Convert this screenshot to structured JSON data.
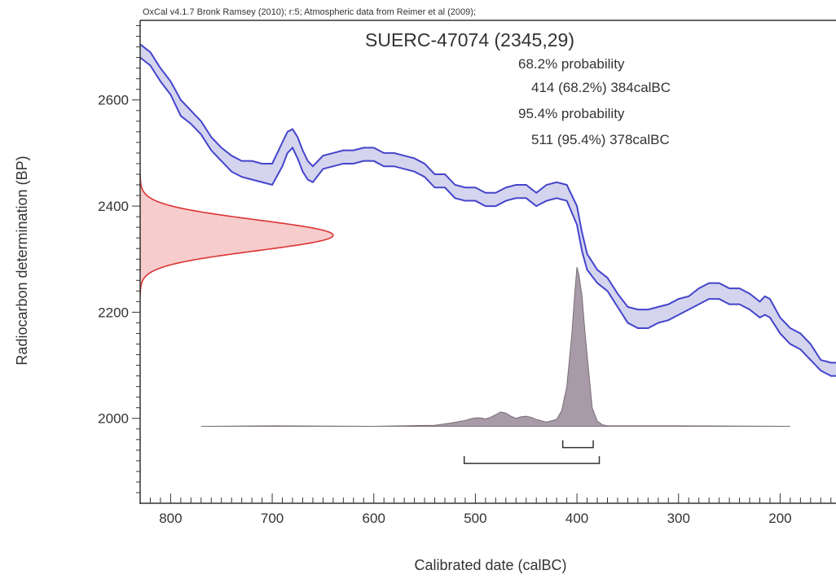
{
  "chart_data": {
    "type": "area",
    "header": "OxCal v4.1.7 Bronk Ramsey (2010); r:5; Atmospheric data from Reimer et al (2009);",
    "title": "SUERC-47074 (2345,29)",
    "summary": [
      "68.2% probability",
      "414 (68.2%) 384calBC",
      "95.4% probability",
      "511 (95.4%) 378calBC"
    ],
    "xlabel": "Calibrated date (calBC)",
    "ylabel": "Radiocarbon determination (BP)",
    "xlim": [
      830,
      145
    ],
    "ylim": [
      1840,
      2750
    ],
    "x_ticks": [
      800,
      700,
      600,
      500,
      400,
      300,
      200
    ],
    "y_ticks": [
      2000,
      2200,
      2400,
      2600
    ],
    "colors": {
      "curve_stroke": "#4444cc",
      "curve_fill": "#d4d4ee",
      "measurement_stroke": "#dd3333",
      "measurement_fill": "#f6cccc",
      "posterior_fill": "#a89aa6",
      "posterior_stroke": "#7a6e78",
      "axis": "#333333"
    },
    "calibration_curve": {
      "name": "",
      "x": [
        830,
        820,
        810,
        800,
        790,
        780,
        770,
        760,
        750,
        740,
        730,
        720,
        710,
        700,
        690,
        685,
        680,
        675,
        670,
        665,
        660,
        650,
        640,
        630,
        620,
        610,
        600,
        590,
        580,
        570,
        560,
        550,
        540,
        530,
        520,
        510,
        500,
        490,
        480,
        470,
        460,
        450,
        440,
        430,
        420,
        410,
        400,
        395,
        390,
        380,
        370,
        360,
        350,
        340,
        330,
        320,
        310,
        300,
        290,
        280,
        270,
        260,
        250,
        240,
        230,
        220,
        215,
        210,
        200,
        190,
        180,
        170,
        160,
        150,
        145
      ],
      "upper": [
        2705,
        2690,
        2660,
        2635,
        2600,
        2580,
        2560,
        2530,
        2510,
        2495,
        2485,
        2485,
        2480,
        2480,
        2520,
        2540,
        2545,
        2530,
        2505,
        2485,
        2475,
        2495,
        2500,
        2505,
        2505,
        2510,
        2510,
        2500,
        2500,
        2495,
        2490,
        2480,
        2460,
        2460,
        2440,
        2435,
        2435,
        2425,
        2425,
        2435,
        2440,
        2440,
        2425,
        2440,
        2445,
        2440,
        2400,
        2350,
        2310,
        2280,
        2265,
        2235,
        2210,
        2205,
        2205,
        2210,
        2215,
        2225,
        2230,
        2245,
        2255,
        2255,
        2245,
        2245,
        2235,
        2220,
        2230,
        2225,
        2190,
        2170,
        2160,
        2140,
        2110,
        2105,
        2105
      ],
      "lower": [
        2680,
        2665,
        2635,
        2610,
        2570,
        2555,
        2535,
        2505,
        2485,
        2465,
        2455,
        2450,
        2445,
        2440,
        2475,
        2500,
        2510,
        2490,
        2465,
        2450,
        2445,
        2470,
        2475,
        2480,
        2480,
        2485,
        2485,
        2475,
        2475,
        2470,
        2465,
        2455,
        2435,
        2435,
        2415,
        2410,
        2410,
        2400,
        2400,
        2410,
        2415,
        2415,
        2400,
        2410,
        2415,
        2410,
        2365,
        2315,
        2280,
        2255,
        2240,
        2210,
        2180,
        2170,
        2170,
        2180,
        2185,
        2195,
        2205,
        2215,
        2225,
        2225,
        2215,
        2215,
        2205,
        2190,
        2195,
        2190,
        2160,
        2140,
        2130,
        2110,
        2090,
        2080,
        2080
      ]
    },
    "measurement_distribution": {
      "name": "",
      "mean": 2345,
      "sigma": 29,
      "peak_x": 640
    },
    "posterior_distribution": {
      "name": "",
      "baseline_y": 1985,
      "x_range": [
        770,
        190
      ],
      "x": [
        770,
        700,
        600,
        540,
        525,
        510,
        505,
        500,
        495,
        490,
        485,
        480,
        475,
        470,
        465,
        460,
        455,
        450,
        445,
        440,
        430,
        420,
        415,
        410,
        405,
        402,
        400,
        398,
        395,
        392,
        388,
        385,
        380,
        375,
        370,
        300,
        190
      ],
      "y": [
        1985,
        1986,
        1985,
        1987,
        1991,
        1996,
        1999,
        2001,
        2001,
        1999,
        2002,
        2007,
        2012,
        2010,
        2004,
        2000,
        2003,
        2004,
        2002,
        1998,
        1993,
        1998,
        2015,
        2060,
        2160,
        2240,
        2285,
        2270,
        2230,
        2160,
        2080,
        2020,
        1995,
        1988,
        1986,
        1986,
        1985
      ]
    },
    "ranges": [
      {
        "label": "68.2%",
        "from": 414,
        "to": 384,
        "y": 1945
      },
      {
        "label": "95.4%",
        "from": 511,
        "to": 378,
        "y": 1915
      }
    ],
    "grid": false,
    "legend": "none"
  }
}
